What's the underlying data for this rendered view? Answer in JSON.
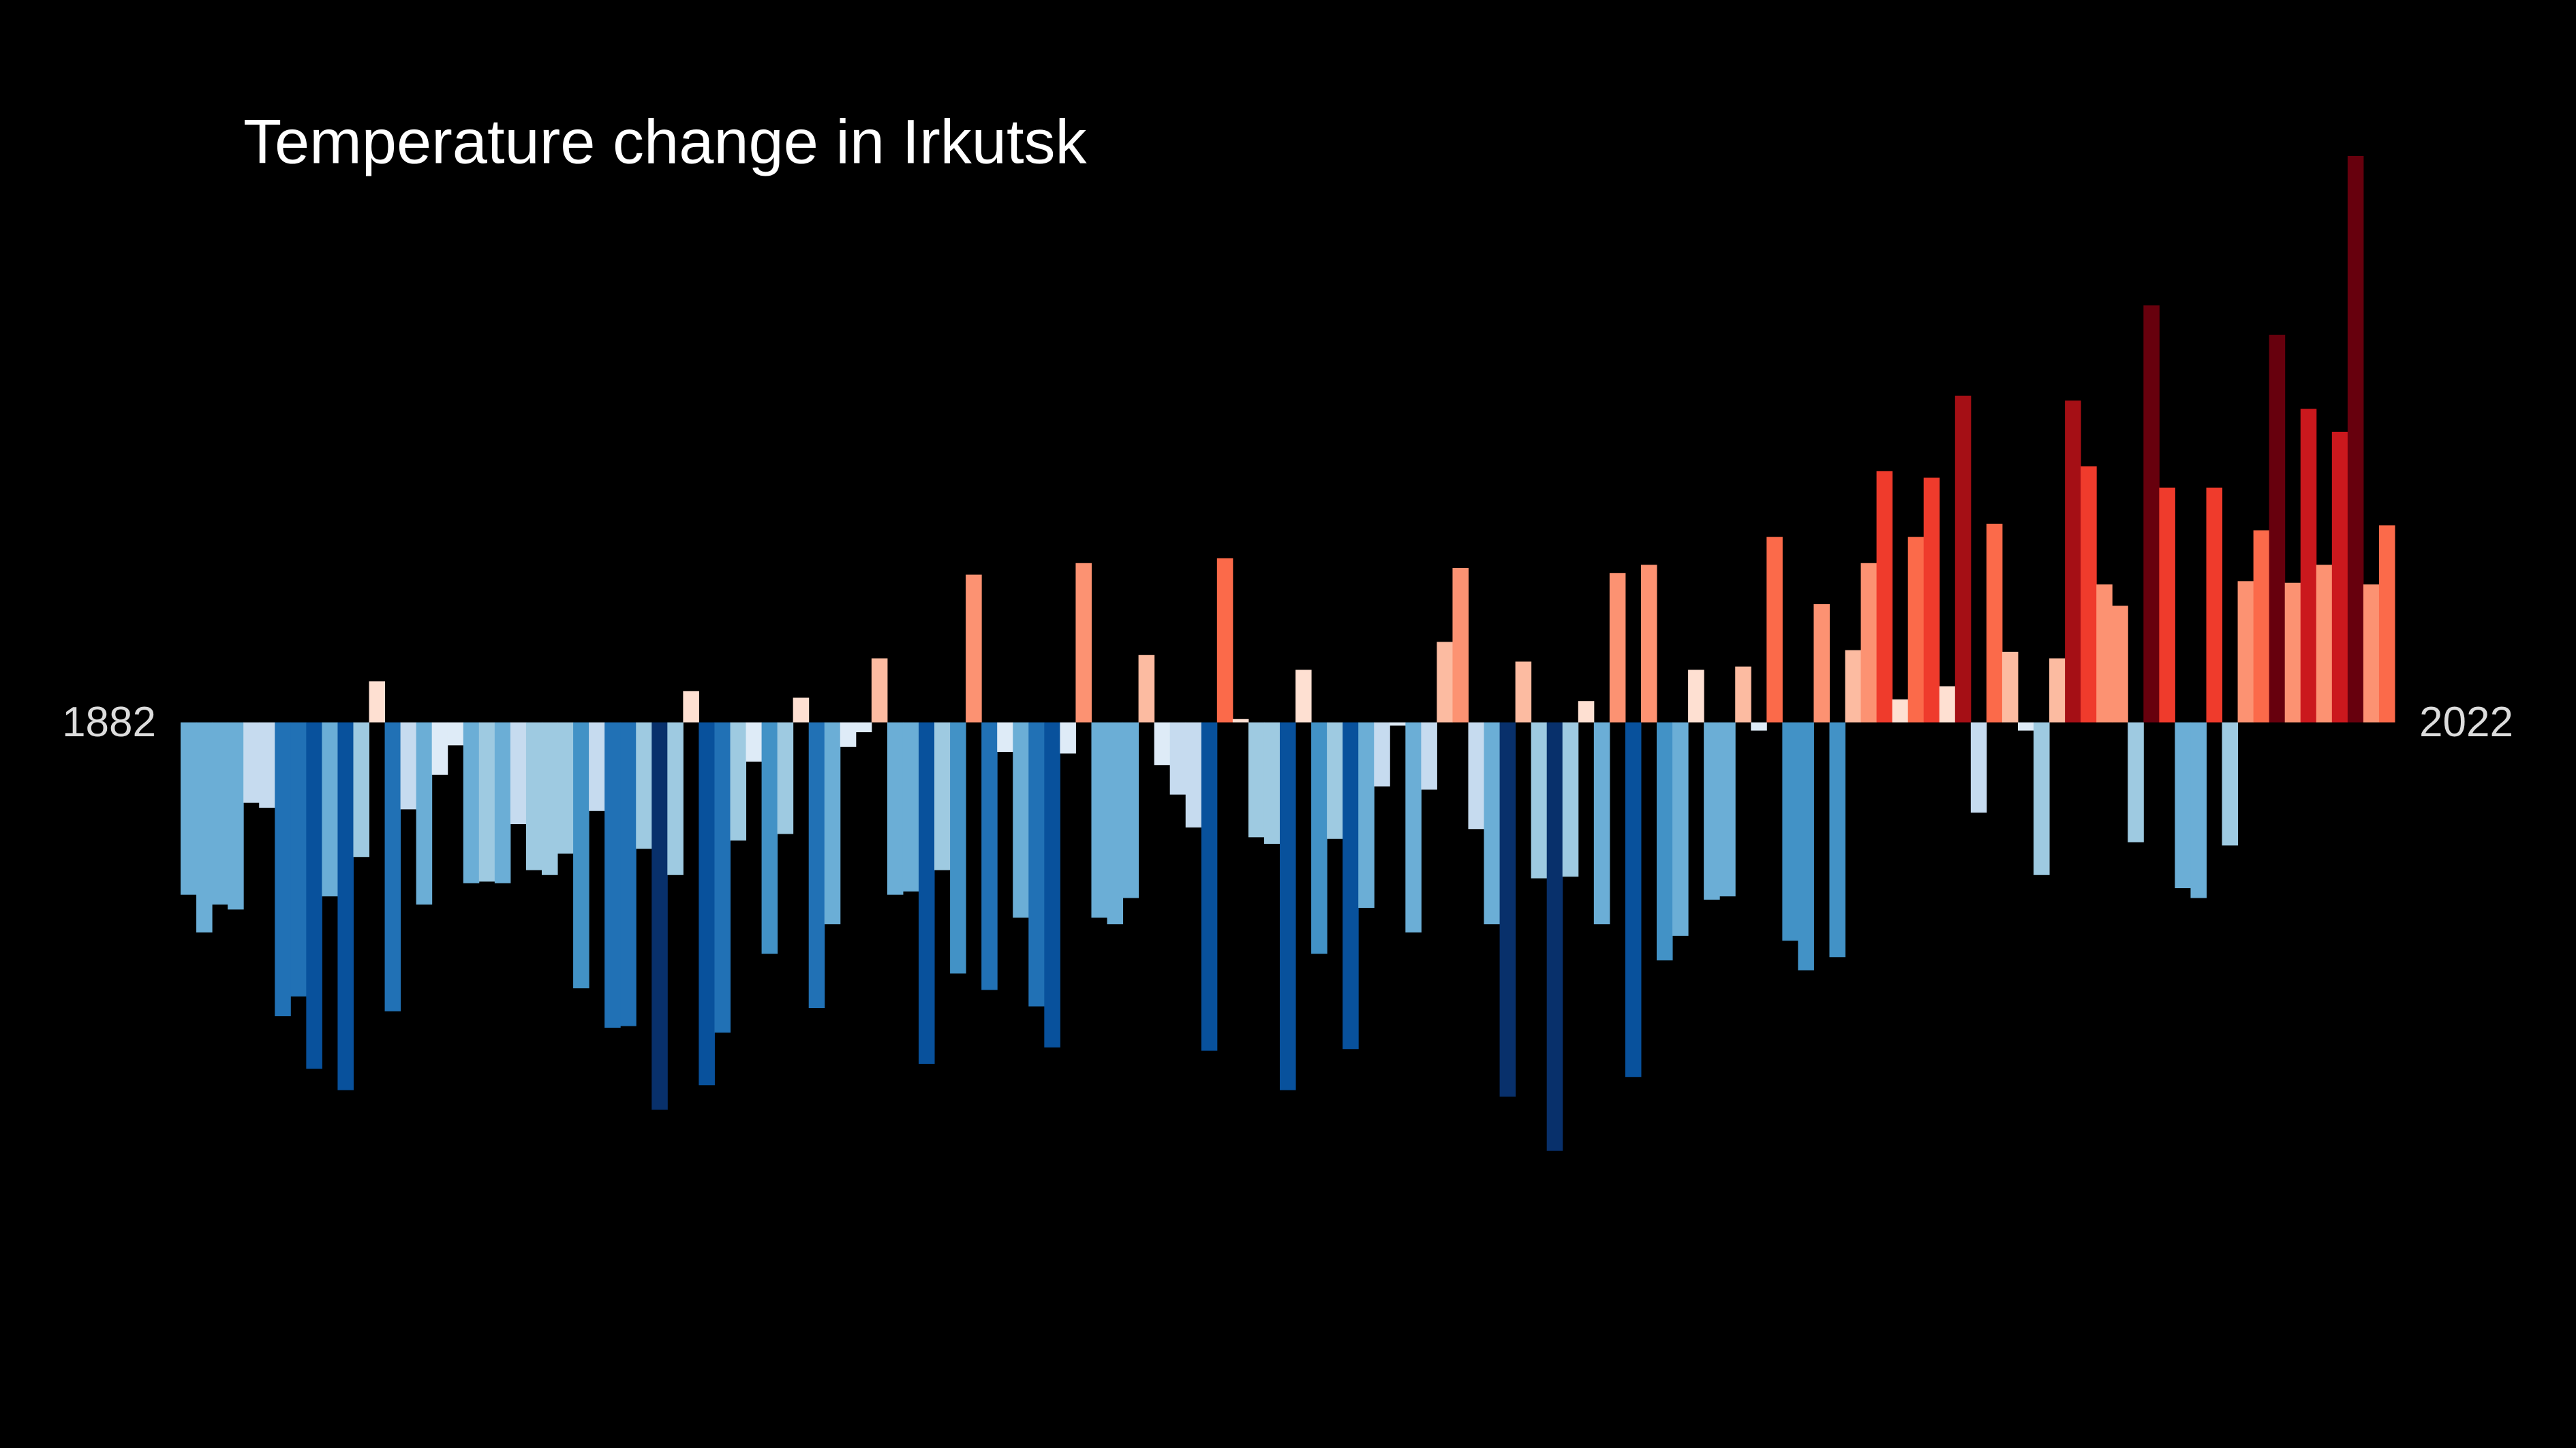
{
  "chart_data": {
    "type": "bar",
    "title": "Temperature change in Irkutsk",
    "x": [
      1882,
      1883,
      1884,
      1885,
      1886,
      1887,
      1888,
      1889,
      1890,
      1891,
      1892,
      1893,
      1894,
      1895,
      1896,
      1897,
      1898,
      1899,
      1900,
      1901,
      1902,
      1903,
      1904,
      1905,
      1906,
      1907,
      1908,
      1909,
      1910,
      1911,
      1912,
      1913,
      1914,
      1915,
      1916,
      1917,
      1918,
      1919,
      1920,
      1921,
      1922,
      1923,
      1924,
      1925,
      1926,
      1927,
      1928,
      1929,
      1930,
      1931,
      1932,
      1933,
      1934,
      1935,
      1936,
      1937,
      1938,
      1939,
      1940,
      1941,
      1942,
      1943,
      1944,
      1945,
      1946,
      1947,
      1948,
      1949,
      1950,
      1951,
      1952,
      1953,
      1954,
      1955,
      1956,
      1957,
      1958,
      1959,
      1960,
      1961,
      1962,
      1963,
      1964,
      1965,
      1966,
      1967,
      1968,
      1969,
      1970,
      1971,
      1972,
      1973,
      1974,
      1975,
      1976,
      1977,
      1978,
      1979,
      1980,
      1981,
      1982,
      1983,
      1984,
      1985,
      1986,
      1987,
      1988,
      1989,
      1990,
      1991,
      1992,
      1993,
      1994,
      1995,
      1996,
      1997,
      1998,
      1999,
      2000,
      2001,
      2002,
      2003,
      2004,
      2005,
      2006,
      2007,
      2008,
      2009,
      2010,
      2011,
      2012,
      2013,
      2014,
      2015,
      2016,
      2017,
      2018,
      2019,
      2020,
      2021,
      2022
    ],
    "values": [
      -1.05,
      -1.28,
      -1.11,
      -1.14,
      -0.49,
      -0.52,
      -1.79,
      -1.67,
      -2.11,
      -1.06,
      -2.24,
      -0.82,
      0.25,
      -1.76,
      -0.53,
      -1.11,
      -0.32,
      -0.14,
      -0.98,
      -0.97,
      -0.98,
      -0.62,
      -0.9,
      -0.93,
      -0.8,
      -1.62,
      -0.54,
      -1.86,
      -1.85,
      -0.77,
      -2.36,
      -0.93,
      0.19,
      -2.21,
      -1.89,
      -0.72,
      -0.24,
      -1.41,
      -0.68,
      0.15,
      -1.74,
      -1.23,
      -0.15,
      -0.06,
      0.39,
      -1.05,
      -1.03,
      -2.08,
      -0.9,
      -1.53,
      0.9,
      -1.63,
      -0.18,
      -1.19,
      -1.73,
      -1.98,
      -0.19,
      0.97,
      -1.19,
      -1.23,
      -1.07,
      0.41,
      -0.26,
      -0.44,
      -0.64,
      -2.0,
      1.0,
      0.02,
      -0.7,
      -0.74,
      -2.24,
      0.32,
      -1.41,
      -0.71,
      -1.99,
      -1.13,
      -0.39,
      -0.02,
      -1.28,
      -0.41,
      0.49,
      0.94,
      -0.65,
      -1.23,
      -2.28,
      0.37,
      -0.95,
      -2.61,
      -0.94,
      0.13,
      -1.23,
      0.91,
      -2.16,
      0.96,
      -1.45,
      -1.3,
      0.32,
      -1.08,
      -1.06,
      0.34,
      -0.05,
      1.13,
      -1.33,
      -1.51,
      0.72,
      -1.43,
      0.44,
      0.97,
      1.53,
      0.14,
      1.13,
      1.49,
      0.22,
      1.99,
      -0.55,
      1.21,
      0.43,
      -0.05,
      -0.93,
      0.39,
      1.96,
      1.56,
      0.84,
      0.71,
      -0.73,
      2.54,
      1.43,
      -1.01,
      -1.07,
      1.43,
      -0.75,
      0.86,
      1.17,
      2.36,
      0.85,
      1.91,
      0.96,
      1.77,
      3.45,
      0.84,
      1.2
    ],
    "xlim": [
      1881.5,
      2022.5
    ],
    "xticks": [
      1882,
      2022
    ],
    "ylim": [
      -4.42,
      4.4
    ],
    "clim": [
      -2.6,
      2.6
    ],
    "colormap": [
      "#08306b",
      "#08519c",
      "#2171b5",
      "#4292c6",
      "#6baed6",
      "#9ecae1",
      "#c6dbef",
      "#deebf7",
      "#fee0d2",
      "#fcbba1",
      "#fc9272",
      "#fb6a4a",
      "#ef3b2c",
      "#cb181d",
      "#a50f15",
      "#67000d"
    ],
    "background": "#000000",
    "text_color": "#ffffff"
  }
}
